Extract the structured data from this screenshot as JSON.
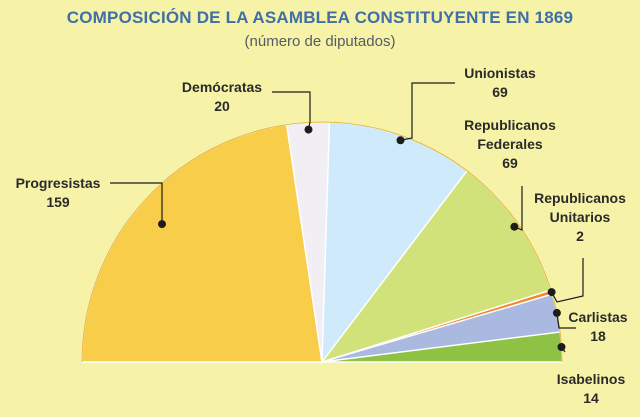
{
  "title": "COMPOSICIÓN DE LA ASAMBLEA CONSTITUYENTE EN 1869",
  "subtitle": "(número de diputados)",
  "chart_data": {
    "type": "pie",
    "variant": "half-pie",
    "title": "COMPOSICIÓN DE LA ASAMBLEA CONSTITUYENTE EN 1869",
    "subtitle": "(número de diputados)",
    "slices": [
      {
        "name": "Progresistas",
        "value": "159",
        "color": "#f7cd4a"
      },
      {
        "name": "Demócratas",
        "value": "20",
        "color": "#f1eef4"
      },
      {
        "name": "Unionistas",
        "value": "69",
        "color": "#cfeafa"
      },
      {
        "name": "Republicanos Federales",
        "lines": [
          "Republicanos",
          "Federales"
        ],
        "value": "69",
        "color": "#d2e27a"
      },
      {
        "name": "Republicanos Unitarios",
        "lines": [
          "Republicanos",
          "Unitarios"
        ],
        "value": "2",
        "color": "#f08a2c"
      },
      {
        "name": "Carlistas",
        "value": "18",
        "color": "#a9b9e0"
      },
      {
        "name": "Isabelinos",
        "value": "14",
        "color": "#8fc244"
      }
    ]
  }
}
